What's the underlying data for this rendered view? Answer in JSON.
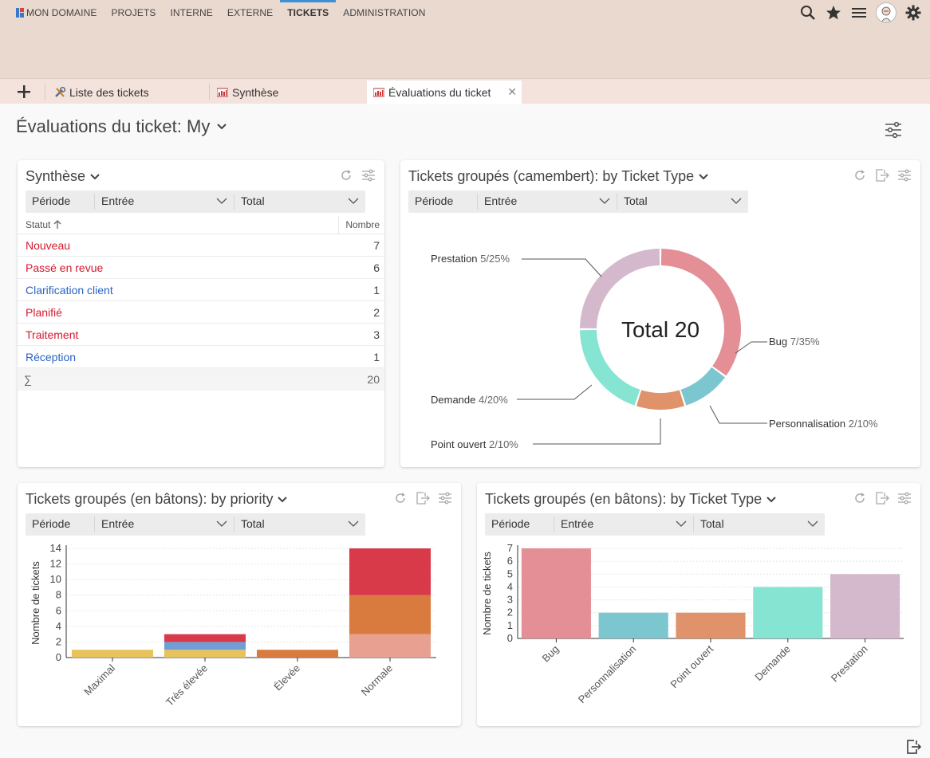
{
  "nav": {
    "items": [
      "MON DOMAINE",
      "PROJETS",
      "INTERNE",
      "EXTERNE",
      "TICKETS",
      "ADMINISTRATION"
    ],
    "active": "TICKETS"
  },
  "tabs": [
    {
      "label": "Liste des tickets",
      "icon": "tools-icon"
    },
    {
      "label": "Synthèse",
      "icon": "chart-icon"
    },
    {
      "label": "Évaluations du ticket",
      "icon": "chart-icon",
      "active": true
    }
  ],
  "page": {
    "title": "Évaluations du ticket: My"
  },
  "filter": {
    "periode_label": "Période",
    "entree": "Entrée",
    "total": "Total"
  },
  "synthese": {
    "title": "Synthèse",
    "col_status": "Statut",
    "col_count": "Nombre",
    "rows": [
      {
        "label": "Nouveau",
        "count": "7",
        "color": "red"
      },
      {
        "label": "Passé en revue",
        "count": "6",
        "color": "red"
      },
      {
        "label": "Clarification client",
        "count": "1",
        "color": "blue"
      },
      {
        "label": "Planifié",
        "count": "2",
        "color": "red"
      },
      {
        "label": "Traitement",
        "count": "3",
        "color": "red"
      },
      {
        "label": "Réception",
        "count": "1",
        "color": "blue"
      }
    ],
    "sum_symbol": "∑",
    "sum_value": "20"
  },
  "pie_panel": {
    "title": "Tickets groupés (camembert): by Ticket Type",
    "center_label": "Total 20"
  },
  "bar_priority_panel": {
    "title": "Tickets groupés (en bâtons): by priority"
  },
  "bar_type_panel": {
    "title": "Tickets groupés (en bâtons): by Ticket Type"
  },
  "chart_data": [
    {
      "type": "pie",
      "title": "",
      "center_text": "Total 20",
      "slices": [
        {
          "name": "Bug",
          "value": 7,
          "label": "7/35%",
          "color": "#e48f95"
        },
        {
          "name": "Personnalisation",
          "value": 2,
          "label": "2/10%",
          "color": "#7cc6d0"
        },
        {
          "name": "Point ouvert",
          "value": 2,
          "label": "2/10%",
          "color": "#e0936b"
        },
        {
          "name": "Demande",
          "value": 4,
          "label": "4/20%",
          "color": "#86e4d2"
        },
        {
          "name": "Prestation",
          "value": 5,
          "label": "5/25%",
          "color": "#d4b9cd"
        }
      ]
    },
    {
      "type": "bar",
      "stacked": true,
      "categories": [
        "Maximal",
        "Très élevée",
        "Élevée",
        "Normale"
      ],
      "ylabel": "Nombre de tickets",
      "xlabel": "",
      "ylim": [
        0,
        14
      ],
      "yticks": [
        0,
        2,
        4,
        6,
        8,
        10,
        12,
        14
      ],
      "series": [
        {
          "values": [
            1,
            1,
            0,
            3
          ],
          "colors": [
            "#e8c25a",
            "#e8c25a",
            "#3ddc4a",
            "#e8a090"
          ]
        },
        {
          "values": [
            0,
            1,
            1,
            5
          ],
          "colors": [
            "#5b9bd5",
            "#6f9fd6",
            "#d97b3e",
            "#d97b3e"
          ]
        },
        {
          "values": [
            0,
            1,
            0,
            6
          ],
          "colors": [
            "#d83a4a",
            "#d83a4a",
            "#d83a4a",
            "#d83a4a"
          ]
        }
      ]
    },
    {
      "type": "bar",
      "categories": [
        "Bug",
        "Personnalisation",
        "Point ouvert",
        "Demande",
        "Prestation"
      ],
      "values": [
        7,
        2,
        2,
        4,
        5
      ],
      "colors": [
        "#e48f95",
        "#7cc6d0",
        "#e0936b",
        "#86e4d2",
        "#d4b9cd"
      ],
      "ylabel": "Nombre de tickets",
      "xlabel": "",
      "ylim": [
        0,
        7
      ],
      "yticks": [
        0,
        1,
        2,
        3,
        4,
        5,
        6,
        7
      ]
    }
  ]
}
